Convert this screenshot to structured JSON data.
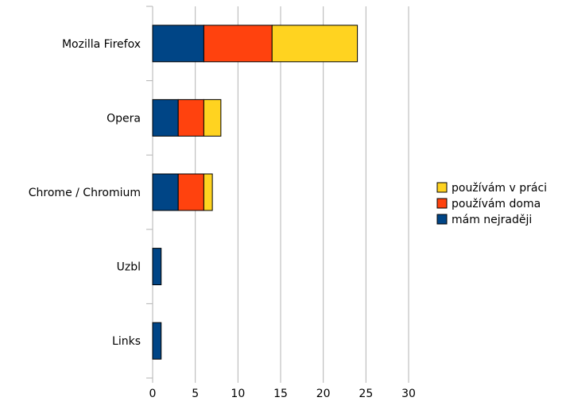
{
  "chart_data": {
    "type": "bar",
    "orientation": "horizontal",
    "stacked": true,
    "categories": [
      "Mozilla Firefox",
      "Opera",
      "Chrome / Chromium",
      "Uzbl",
      "Links"
    ],
    "series": [
      {
        "name": "mám nejraději",
        "color": "#004586",
        "values": [
          6,
          3,
          3,
          1,
          1
        ]
      },
      {
        "name": "používám doma",
        "color": "#ff420e",
        "values": [
          8,
          3,
          3,
          0,
          0
        ]
      },
      {
        "name": "používám v práci",
        "color": "#ffd320",
        "values": [
          10,
          2,
          1,
          0,
          0
        ]
      }
    ],
    "xlim": [
      0,
      30
    ],
    "xticks": [
      0,
      5,
      10,
      15,
      20,
      25,
      30
    ],
    "grid": true,
    "legend_position": "right",
    "legend_order": [
      "používám v práci",
      "používám doma",
      "mám nejraději"
    ],
    "title": "",
    "xlabel": "",
    "ylabel": ""
  }
}
